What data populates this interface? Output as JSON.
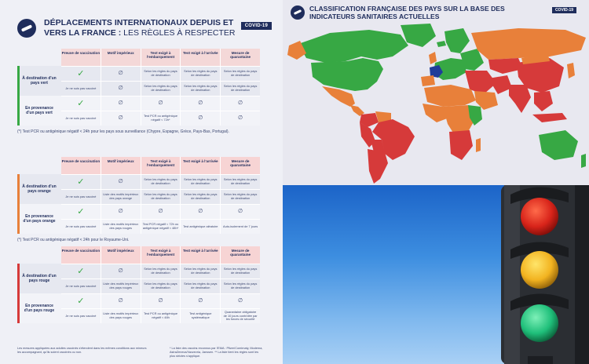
{
  "rules": {
    "title_bold": "DÉPLACEMENTS INTERNATIONAUX DEPUIS ET VERS LA FRANCE :",
    "title_light": "LES RÈGLES À RESPECTER",
    "badge": "COVID-19",
    "headers": [
      "Preuve de vaccination",
      "Motif impérieux",
      "Test exigé à l'embarquement",
      "Test exigé à l'arrivée",
      "Mesure de quarantaine"
    ],
    "header_note": "(vaccins reconnus par l'EMA)",
    "blocks": [
      {
        "color": "#37a844",
        "sections": [
          {
            "label": "À destination d'un pays vert",
            "rows": [
              [
                "✓",
                "∅",
                "Selon les règles du pays de destination",
                "Selon les règles du pays de destination",
                "Selon les règles du pays de destination"
              ],
              [
                "Je ne suis pas vacciné",
                "∅",
                "Selon les règles du pays de destination",
                "Selon les règles du pays de destination",
                "Selon les règles du pays de destination"
              ]
            ]
          },
          {
            "label": "En provenance d'un pays vert",
            "rows": [
              [
                "✓",
                "∅",
                "∅",
                "∅",
                "∅"
              ],
              [
                "Je ne suis pas vacciné",
                "∅",
                "Test PCR ou antigénique négatif < 72h*",
                "∅",
                "∅"
              ]
            ]
          }
        ],
        "footnote": "(*) Test PCR ou antigénique négatif < 24h pour les pays sous surveillance (Chypre, Espagne, Grèce, Pays-Bas, Portugal)."
      },
      {
        "color": "#e8803a",
        "sections": [
          {
            "label": "À destination d'un pays orange",
            "rows": [
              [
                "✓",
                "∅",
                "Selon les règles du pays de destination",
                "Selon les règles du pays de destination",
                "Selon les règles du pays de destination"
              ],
              [
                "Je ne suis pas vacciné",
                "Liste des motifs impérieux des pays orange",
                "Selon les règles du pays de destination",
                "Selon les règles du pays de destination",
                "Selon les règles du pays de destination"
              ]
            ]
          },
          {
            "label": "En provenance d'un pays orange",
            "rows": [
              [
                "✓",
                "∅",
                "∅",
                "∅",
                "∅"
              ],
              [
                "Je ne suis pas vacciné",
                "Liste des motifs impérieux des pays rouges",
                "Test PCR négatif < 72h ou antigénique négatif < 48h*",
                "Test antigénique aléatoire",
                "Auto-isolement de 7 jours"
              ]
            ]
          }
        ],
        "footnote": "(*) Test PCR ou antigénique négatif < 24h pour le Royaume-Uni."
      },
      {
        "color": "#d63a3a",
        "sections": [
          {
            "label": "À destination d'un pays rouge",
            "rows": [
              [
                "✓",
                "∅",
                "Selon les règles du pays de destination",
                "Selon les règles du pays de destination",
                "Selon les règles du pays de destination"
              ],
              [
                "Je ne suis pas vacciné",
                "Liste des motifs impérieux des pays rouges",
                "Selon les règles du pays de destination",
                "Selon les règles du pays de destination",
                "Selon les règles du pays de destination"
              ]
            ]
          },
          {
            "label": "En provenance d'un pays rouge",
            "rows": [
              [
                "✓",
                "∅",
                "∅",
                "∅",
                "∅"
              ],
              [
                "Je ne suis pas vacciné",
                "Liste des motifs impérieux des pays rouges",
                "Test PCR ou antigénique négatif < 48h",
                "Test antigénique systématique",
                "Quarantaine obligatoire de 10 jours contrôlée par les forces de sécurité"
              ]
            ]
          }
        ],
        "footnote": ""
      }
    ],
    "legal_left": "Les mesures appliquées aux adultes vaccinés s'étendent dans les mêmes conditions aux mineurs les accompagnant, qu'ils soient vaccinés ou non.",
    "legal_right": "* La liste des vaccins reconnus par l'EMA : Pfizer/Comirnaty, Moderna, AstraZeneca/Vaxzevria, Janssen. ** La liste tient les règles sont les plus strictes s'applique."
  },
  "map": {
    "title": "CLASSIFICATION FRANÇAISE DES PAYS SUR LA BASE DES INDICATEURS SANITAIRES ACTUELLES",
    "badge": "COVID-19",
    "colors": {
      "ocean": "#e8e8f0",
      "green": "#37a844",
      "orange": "#e8803a",
      "red": "#d63a3a",
      "france": "#1f3d99"
    }
  },
  "photo": {
    "subject": "traffic-light",
    "sky_color": "#3d8ee0",
    "lights": [
      "red",
      "amber",
      "green"
    ]
  }
}
